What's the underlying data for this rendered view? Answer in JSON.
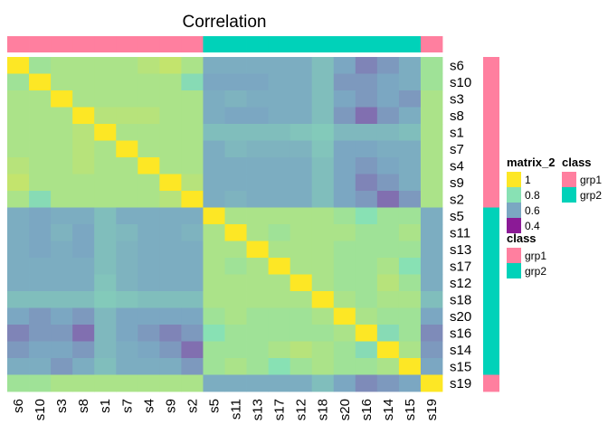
{
  "chart_data": {
    "type": "heatmap",
    "title": "Correlation",
    "rows": [
      "s6",
      "s10",
      "s3",
      "s8",
      "s1",
      "s7",
      "s4",
      "s9",
      "s2",
      "s5",
      "s11",
      "s13",
      "s17",
      "s12",
      "s18",
      "s20",
      "s16",
      "s14",
      "s15",
      "s19"
    ],
    "columns": [
      "s6",
      "s10",
      "s3",
      "s8",
      "s1",
      "s7",
      "s4",
      "s9",
      "s2",
      "s5",
      "s11",
      "s13",
      "s17",
      "s12",
      "s18",
      "s20",
      "s16",
      "s14",
      "s15",
      "s19"
    ],
    "groups": {
      "s6": "grp1",
      "s10": "grp1",
      "s3": "grp1",
      "s8": "grp1",
      "s1": "grp1",
      "s7": "grp1",
      "s4": "grp1",
      "s9": "grp1",
      "s2": "grp1",
      "s19": "grp1",
      "s5": "grp2",
      "s11": "grp2",
      "s13": "grp2",
      "s17": "grp2",
      "s12": "grp2",
      "s18": "grp2",
      "s20": "grp2",
      "s16": "grp2",
      "s14": "grp2",
      "s15": "grp2"
    },
    "values": [
      [
        1.0,
        0.84,
        0.86,
        0.86,
        0.86,
        0.86,
        0.88,
        0.9,
        0.86,
        0.62,
        0.62,
        0.62,
        0.62,
        0.62,
        0.68,
        0.6,
        0.55,
        0.58,
        0.62,
        0.84
      ],
      [
        0.84,
        1.0,
        0.86,
        0.86,
        0.86,
        0.86,
        0.86,
        0.86,
        0.78,
        0.6,
        0.6,
        0.6,
        0.62,
        0.62,
        0.68,
        0.58,
        0.58,
        0.6,
        0.62,
        0.84
      ],
      [
        0.86,
        0.86,
        1.0,
        0.86,
        0.86,
        0.86,
        0.86,
        0.86,
        0.86,
        0.62,
        0.64,
        0.62,
        0.62,
        0.62,
        0.68,
        0.6,
        0.58,
        0.6,
        0.58,
        0.86
      ],
      [
        0.86,
        0.86,
        0.86,
        1.0,
        0.88,
        0.88,
        0.88,
        0.86,
        0.86,
        0.62,
        0.6,
        0.6,
        0.62,
        0.62,
        0.68,
        0.58,
        0.52,
        0.58,
        0.62,
        0.86
      ],
      [
        0.86,
        0.86,
        0.86,
        0.88,
        1.0,
        0.86,
        0.86,
        0.86,
        0.86,
        0.68,
        0.68,
        0.68,
        0.68,
        0.7,
        0.72,
        0.66,
        0.66,
        0.66,
        0.68,
        0.86
      ],
      [
        0.86,
        0.86,
        0.86,
        0.88,
        0.86,
        1.0,
        0.86,
        0.86,
        0.86,
        0.62,
        0.66,
        0.64,
        0.64,
        0.64,
        0.7,
        0.6,
        0.6,
        0.62,
        0.62,
        0.86
      ],
      [
        0.88,
        0.86,
        0.86,
        0.88,
        0.86,
        0.86,
        1.0,
        0.86,
        0.86,
        0.62,
        0.62,
        0.62,
        0.62,
        0.62,
        0.68,
        0.6,
        0.58,
        0.6,
        0.62,
        0.86
      ],
      [
        0.9,
        0.86,
        0.86,
        0.86,
        0.86,
        0.86,
        0.86,
        1.0,
        0.88,
        0.62,
        0.62,
        0.62,
        0.62,
        0.62,
        0.68,
        0.6,
        0.55,
        0.58,
        0.62,
        0.86
      ],
      [
        0.86,
        0.78,
        0.86,
        0.86,
        0.86,
        0.86,
        0.86,
        0.88,
        1.0,
        0.62,
        0.64,
        0.62,
        0.62,
        0.62,
        0.68,
        0.6,
        0.58,
        0.52,
        0.58,
        0.86
      ],
      [
        0.62,
        0.6,
        0.62,
        0.62,
        0.68,
        0.62,
        0.62,
        0.62,
        0.62,
        1.0,
        0.86,
        0.86,
        0.86,
        0.86,
        0.86,
        0.84,
        0.8,
        0.84,
        0.84,
        0.62
      ],
      [
        0.62,
        0.6,
        0.64,
        0.6,
        0.68,
        0.66,
        0.62,
        0.62,
        0.64,
        0.86,
        1.0,
        0.86,
        0.84,
        0.86,
        0.86,
        0.86,
        0.84,
        0.84,
        0.86,
        0.62
      ],
      [
        0.62,
        0.6,
        0.62,
        0.6,
        0.68,
        0.64,
        0.62,
        0.62,
        0.62,
        0.86,
        0.86,
        1.0,
        0.86,
        0.86,
        0.86,
        0.84,
        0.84,
        0.84,
        0.84,
        0.62
      ],
      [
        0.62,
        0.62,
        0.62,
        0.62,
        0.68,
        0.64,
        0.62,
        0.62,
        0.62,
        0.86,
        0.84,
        0.86,
        1.0,
        0.86,
        0.86,
        0.84,
        0.84,
        0.86,
        0.8,
        0.62
      ],
      [
        0.62,
        0.62,
        0.62,
        0.62,
        0.7,
        0.64,
        0.62,
        0.62,
        0.62,
        0.86,
        0.86,
        0.86,
        0.86,
        1.0,
        0.86,
        0.84,
        0.84,
        0.88,
        0.84,
        0.62
      ],
      [
        0.68,
        0.68,
        0.68,
        0.68,
        0.72,
        0.7,
        0.68,
        0.68,
        0.68,
        0.86,
        0.86,
        0.86,
        0.86,
        0.86,
        1.0,
        0.86,
        0.84,
        0.86,
        0.86,
        0.68
      ],
      [
        0.6,
        0.58,
        0.6,
        0.58,
        0.66,
        0.6,
        0.6,
        0.6,
        0.6,
        0.84,
        0.86,
        0.84,
        0.84,
        0.84,
        0.86,
        1.0,
        0.86,
        0.84,
        0.84,
        0.6
      ],
      [
        0.55,
        0.58,
        0.58,
        0.52,
        0.66,
        0.6,
        0.58,
        0.55,
        0.58,
        0.8,
        0.84,
        0.84,
        0.84,
        0.84,
        0.84,
        0.86,
        1.0,
        0.78,
        0.84,
        0.56
      ],
      [
        0.58,
        0.6,
        0.6,
        0.58,
        0.66,
        0.62,
        0.6,
        0.58,
        0.52,
        0.84,
        0.84,
        0.84,
        0.86,
        0.88,
        0.86,
        0.84,
        0.78,
        1.0,
        0.86,
        0.58
      ],
      [
        0.62,
        0.62,
        0.58,
        0.62,
        0.68,
        0.62,
        0.62,
        0.62,
        0.58,
        0.84,
        0.86,
        0.84,
        0.8,
        0.84,
        0.86,
        0.84,
        0.84,
        0.86,
        1.0,
        0.6
      ],
      [
        0.84,
        0.84,
        0.86,
        0.86,
        0.86,
        0.86,
        0.86,
        0.86,
        0.86,
        0.62,
        0.62,
        0.62,
        0.62,
        0.62,
        0.68,
        0.6,
        0.56,
        0.58,
        0.6,
        1.0
      ]
    ],
    "color_scale": {
      "breaks": [
        1,
        0.8,
        0.6,
        0.4
      ],
      "colors": [
        "#fde725",
        "#88e1b4",
        "#7ba7c2",
        "#8b1a96"
      ]
    },
    "legend_placement": "right",
    "legends": [
      {
        "title": "matrix_2",
        "type": "continuous",
        "labels": [
          "1",
          "0.8",
          "0.6",
          "0.4"
        ]
      },
      {
        "title": "class",
        "type": "discrete",
        "labels": [
          "grp1",
          "grp2"
        ],
        "colors": [
          "#ff7f9f",
          "#00d2b9"
        ]
      },
      {
        "title": "class",
        "type": "discrete",
        "labels": [
          "grp1",
          "grp2"
        ],
        "colors": [
          "#ff7f9f",
          "#00d2b9"
        ]
      }
    ],
    "annotation_colors": {
      "grp1": "#ff7f9f",
      "grp2": "#00d2b9"
    }
  }
}
